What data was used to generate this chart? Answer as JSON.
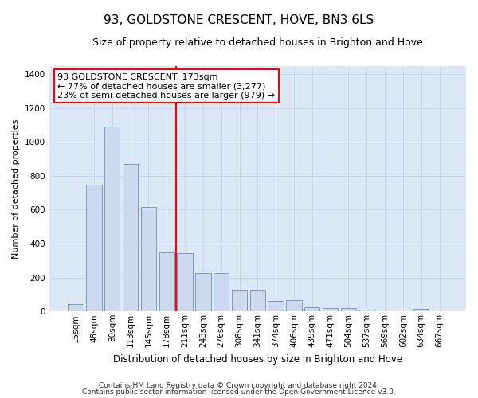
{
  "title": "93, GOLDSTONE CRESCENT, HOVE, BN3 6LS",
  "subtitle": "Size of property relative to detached houses in Brighton and Hove",
  "xlabel": "Distribution of detached houses by size in Brighton and Hove",
  "ylabel": "Number of detached properties",
  "bar_labels": [
    "15sqm",
    "48sqm",
    "80sqm",
    "113sqm",
    "145sqm",
    "178sqm",
    "211sqm",
    "243sqm",
    "276sqm",
    "308sqm",
    "341sqm",
    "374sqm",
    "406sqm",
    "439sqm",
    "471sqm",
    "504sqm",
    "537sqm",
    "569sqm",
    "602sqm",
    "634sqm",
    "667sqm"
  ],
  "bar_values": [
    45,
    750,
    1090,
    870,
    615,
    350,
    345,
    225,
    225,
    130,
    130,
    60,
    65,
    25,
    22,
    20,
    12,
    2,
    0,
    15,
    2
  ],
  "bar_color": "#ccd9ef",
  "bar_edge_color": "#7090c0",
  "vline_index": 5,
  "vline_color": "red",
  "ylim": [
    0,
    1450
  ],
  "yticks": [
    0,
    200,
    400,
    600,
    800,
    1000,
    1200,
    1400
  ],
  "annotation_text": "93 GOLDSTONE CRESCENT: 173sqm\n← 77% of detached houses are smaller (3,277)\n23% of semi-detached houses are larger (979) →",
  "annotation_box_color": "white",
  "annotation_box_edge": "red",
  "footer1": "Contains HM Land Registry data © Crown copyright and database right 2024.",
  "footer2": "Contains public sector information licensed under the Open Government Licence v3.0.",
  "grid_color": "#c8d4e8",
  "background_color": "#dce8f5",
  "title_fontsize": 11,
  "subtitle_fontsize": 9,
  "ylabel_fontsize": 8,
  "xlabel_fontsize": 8.5,
  "tick_fontsize": 7.5,
  "footer_fontsize": 6.5,
  "annotation_fontsize": 8
}
